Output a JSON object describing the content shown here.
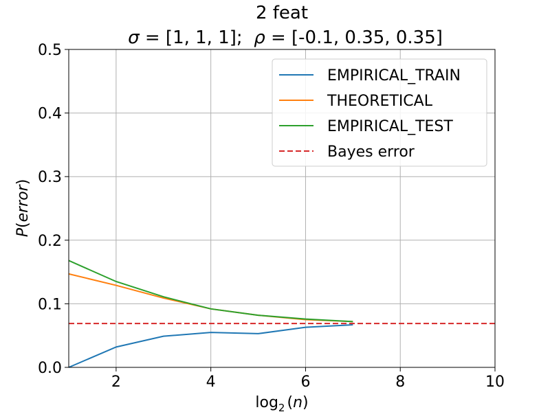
{
  "chart_data": {
    "type": "line",
    "title_line1": "2 feat",
    "title_line2_parts": [
      "σ",
      " = [1, 1, 1];  ",
      "ρ",
      " = [-0.1, 0.35, 0.35]"
    ],
    "xlabel_parts": [
      "log",
      "2",
      "(",
      "n",
      ")"
    ],
    "ylabel_parts": [
      "P",
      "(",
      "error",
      ")"
    ],
    "xlim": [
      1,
      10
    ],
    "ylim": [
      0,
      0.5
    ],
    "xticks": [
      2,
      4,
      6,
      8,
      10
    ],
    "xtick_labels": [
      "2",
      "4",
      "6",
      "8",
      "10"
    ],
    "yticks": [
      0.0,
      0.1,
      0.2,
      0.3,
      0.4,
      0.5
    ],
    "ytick_labels": [
      "0.0",
      "0.1",
      "0.2",
      "0.3",
      "0.4",
      "0.5"
    ],
    "grid": true,
    "legend_position": "top-right",
    "series": [
      {
        "name": "EMPIRICAL_TRAIN",
        "color": "#1f77b4",
        "dash": "solid",
        "x": [
          1,
          2,
          3,
          4,
          5,
          6,
          7
        ],
        "y": [
          0.0,
          0.032,
          0.049,
          0.055,
          0.053,
          0.063,
          0.067
        ]
      },
      {
        "name": "THEORETICAL",
        "color": "#ff7f0e",
        "dash": "solid",
        "x": [
          1,
          2,
          3,
          4,
          5,
          6,
          7
        ],
        "y": [
          0.147,
          0.129,
          0.109,
          0.092,
          0.082,
          0.075,
          0.072
        ]
      },
      {
        "name": "EMPIRICAL_TEST",
        "color": "#2ca02c",
        "dash": "solid",
        "x": [
          1,
          2,
          3,
          4,
          5,
          6,
          7
        ],
        "y": [
          0.168,
          0.135,
          0.111,
          0.092,
          0.082,
          0.076,
          0.072
        ]
      },
      {
        "name": "Bayes error",
        "color": "#d62728",
        "dash": "dashed",
        "x": [
          1,
          10
        ],
        "y": [
          0.069,
          0.069
        ]
      }
    ]
  }
}
